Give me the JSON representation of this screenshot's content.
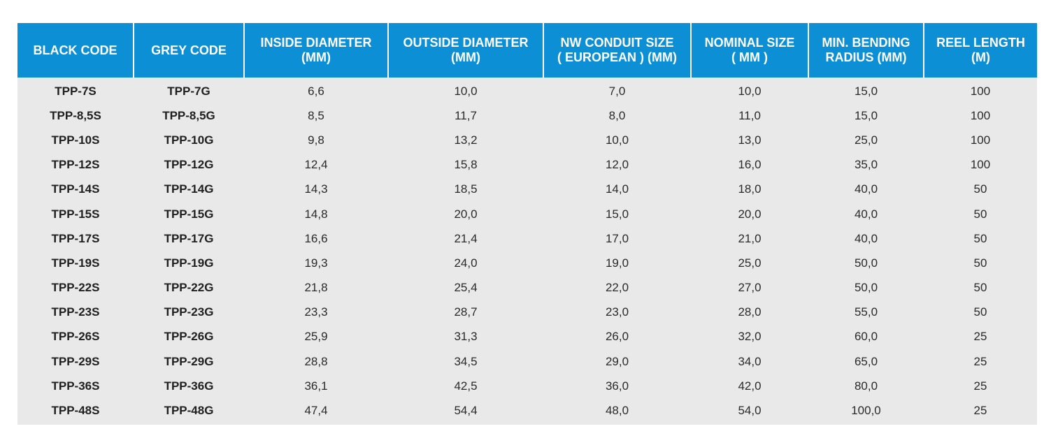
{
  "table": {
    "headers": [
      [
        "BLACK CODE"
      ],
      [
        "GREY CODE"
      ],
      [
        "INSIDE DIAMETER",
        "(MM)"
      ],
      [
        "OUTSIDE DIAMETER",
        "(MM)"
      ],
      [
        "NW CONDUIT SIZE",
        "( EUROPEAN ) (MM)"
      ],
      [
        "NOMINAL SIZE",
        "( MM )"
      ],
      [
        "MIN. BENDING",
        "RADIUS (MM)"
      ],
      [
        "REEL LENGTH",
        "(M)"
      ]
    ],
    "rows": [
      [
        "TPP-7S",
        "TPP-7G",
        "6,6",
        "10,0",
        "7,0",
        "10,0",
        "15,0",
        "100"
      ],
      [
        "TPP-8,5S",
        "TPP-8,5G",
        "8,5",
        "11,7",
        "8,0",
        "11,0",
        "15,0",
        "100"
      ],
      [
        "TPP-10S",
        "TPP-10G",
        "9,8",
        "13,2",
        "10,0",
        "13,0",
        "25,0",
        "100"
      ],
      [
        "TPP-12S",
        "TPP-12G",
        "12,4",
        "15,8",
        "12,0",
        "16,0",
        "35,0",
        "100"
      ],
      [
        "TPP-14S",
        "TPP-14G",
        "14,3",
        "18,5",
        "14,0",
        "18,0",
        "40,0",
        "50"
      ],
      [
        "TPP-15S",
        "TPP-15G",
        "14,8",
        "20,0",
        "15,0",
        "20,0",
        "40,0",
        "50"
      ],
      [
        "TPP-17S",
        "TPP-17G",
        "16,6",
        "21,4",
        "17,0",
        "21,0",
        "40,0",
        "50"
      ],
      [
        "TPP-19S",
        "TPP-19G",
        "19,3",
        "24,0",
        "19,0",
        "25,0",
        "50,0",
        "50"
      ],
      [
        "TPP-22S",
        "TPP-22G",
        "21,8",
        "25,4",
        "22,0",
        "27,0",
        "50,0",
        "50"
      ],
      [
        "TPP-23S",
        "TPP-23G",
        "23,3",
        "28,7",
        "23,0",
        "28,0",
        "55,0",
        "50"
      ],
      [
        "TPP-26S",
        "TPP-26G",
        "25,9",
        "31,3",
        "26,0",
        "32,0",
        "60,0",
        "25"
      ],
      [
        "TPP-29S",
        "TPP-29G",
        "28,8",
        "34,5",
        "29,0",
        "34,0",
        "65,0",
        "25"
      ],
      [
        "TPP-36S",
        "TPP-36G",
        "36,1",
        "42,5",
        "36,0",
        "42,0",
        "80,0",
        "25"
      ],
      [
        "TPP-48S",
        "TPP-48G",
        "47,4",
        "54,4",
        "48,0",
        "54,0",
        "100,0",
        "25"
      ]
    ]
  },
  "colors": {
    "header_background": "#0d8fd5",
    "header_text": "#ffffff",
    "body_background": "#e9e9ea",
    "body_text": "#2a2a2a"
  }
}
